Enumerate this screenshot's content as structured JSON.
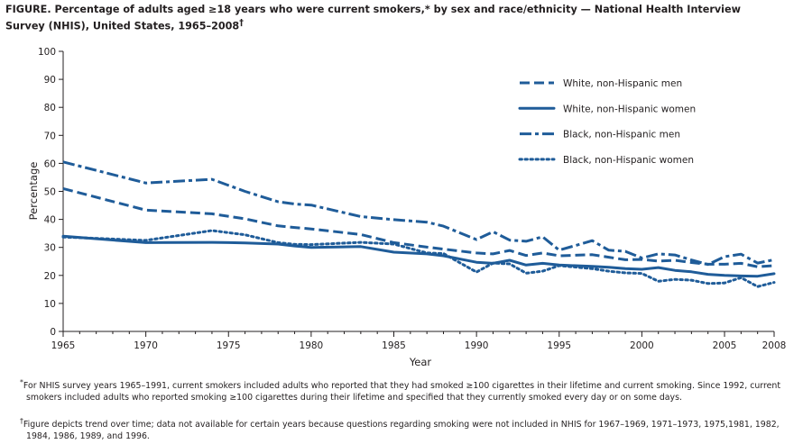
{
  "title": {
    "label": "FIGURE.",
    "text": " Percentage of adults aged ≥18 years who were current smokers,* by sex and race/ethnicity — National Health Interview Survey (NHIS), United States, 1965–2008",
    "mark": "†"
  },
  "chart_data": {
    "type": "line",
    "xlabel": "Year",
    "ylabel": "Percentage",
    "xlim": [
      1965,
      2008
    ],
    "ylim": [
      0,
      100
    ],
    "x_ticks": [
      1965,
      1970,
      1975,
      1980,
      1985,
      1990,
      1995,
      2000,
      2005,
      2008
    ],
    "y_ticks": [
      0,
      10,
      20,
      30,
      40,
      50,
      60,
      70,
      80,
      90,
      100
    ],
    "grid": false,
    "legend_position": "top-right",
    "series": [
      {
        "name": "White, non-Hispanic men",
        "style": "dashed",
        "color": "#1f5c99",
        "points": [
          [
            1965,
            51
          ],
          [
            1970,
            43.3
          ],
          [
            1974,
            42
          ],
          [
            1976,
            40.2
          ],
          [
            1978,
            37.7
          ],
          [
            1979,
            37.1
          ],
          [
            1980,
            36.6
          ],
          [
            1983,
            34.6
          ],
          [
            1985,
            31.7
          ],
          [
            1987,
            30.1
          ],
          [
            1988,
            29.4
          ],
          [
            1990,
            28.0
          ],
          [
            1991,
            27.7
          ],
          [
            1992,
            28.9
          ],
          [
            1993,
            27.1
          ],
          [
            1994,
            28.0
          ],
          [
            1995,
            27.0
          ],
          [
            1997,
            27.4
          ],
          [
            1998,
            26.5
          ],
          [
            1999,
            25.6
          ],
          [
            2000,
            25.7
          ],
          [
            2001,
            25.1
          ],
          [
            2002,
            25.4
          ],
          [
            2003,
            24.6
          ],
          [
            2004,
            24.0
          ],
          [
            2005,
            24.0
          ],
          [
            2006,
            24.3
          ],
          [
            2007,
            23.1
          ],
          [
            2008,
            23.5
          ]
        ]
      },
      {
        "name": "White, non-Hispanic women",
        "style": "solid",
        "color": "#1f5c99",
        "points": [
          [
            1965,
            34
          ],
          [
            1970,
            31.7
          ],
          [
            1974,
            31.8
          ],
          [
            1976,
            31.6
          ],
          [
            1978,
            31.2
          ],
          [
            1979,
            30.5
          ],
          [
            1980,
            30.0
          ],
          [
            1983,
            30.3
          ],
          [
            1985,
            28.3
          ],
          [
            1987,
            27.7
          ],
          [
            1988,
            27.0
          ],
          [
            1990,
            24.7
          ],
          [
            1991,
            24.3
          ],
          [
            1992,
            25.4
          ],
          [
            1993,
            23.7
          ],
          [
            1994,
            24.3
          ],
          [
            1995,
            23.7
          ],
          [
            1997,
            23.2
          ],
          [
            1998,
            22.9
          ],
          [
            1999,
            22.4
          ],
          [
            2000,
            22.2
          ],
          [
            2001,
            22.8
          ],
          [
            2002,
            21.8
          ],
          [
            2003,
            21.3
          ],
          [
            2004,
            20.4
          ],
          [
            2005,
            20.0
          ],
          [
            2006,
            19.8
          ],
          [
            2007,
            19.7
          ],
          [
            2008,
            20.6
          ]
        ]
      },
      {
        "name": "Black, non-Hispanic men",
        "style": "dash-dot",
        "color": "#1f5c99",
        "points": [
          [
            1965,
            60.5
          ],
          [
            1970,
            53
          ],
          [
            1974,
            54.3
          ],
          [
            1976,
            50.0
          ],
          [
            1978,
            46.3
          ],
          [
            1979,
            45.5
          ],
          [
            1980,
            45.1
          ],
          [
            1983,
            41.0
          ],
          [
            1985,
            39.9
          ],
          [
            1987,
            39.0
          ],
          [
            1988,
            37.6
          ],
          [
            1990,
            32.8
          ],
          [
            1991,
            35.6
          ],
          [
            1992,
            32.6
          ],
          [
            1993,
            32.2
          ],
          [
            1994,
            33.8
          ],
          [
            1995,
            29.0
          ],
          [
            1997,
            32.4
          ],
          [
            1998,
            29.0
          ],
          [
            1999,
            28.6
          ],
          [
            2000,
            26.2
          ],
          [
            2001,
            27.7
          ],
          [
            2002,
            27.3
          ],
          [
            2003,
            25.5
          ],
          [
            2004,
            23.9
          ],
          [
            2005,
            26.7
          ],
          [
            2006,
            27.6
          ],
          [
            2007,
            24.4
          ],
          [
            2008,
            25.6
          ]
        ]
      },
      {
        "name": "Black, non-Hispanic women",
        "style": "dotted",
        "color": "#1f5c99",
        "points": [
          [
            1965,
            33.7
          ],
          [
            1970,
            32.5
          ],
          [
            1974,
            36.0
          ],
          [
            1976,
            34.5
          ],
          [
            1978,
            31.7
          ],
          [
            1979,
            31.1
          ],
          [
            1980,
            31.0
          ],
          [
            1983,
            31.8
          ],
          [
            1985,
            31.2
          ],
          [
            1987,
            28.0
          ],
          [
            1988,
            27.8
          ],
          [
            1990,
            21.2
          ],
          [
            1991,
            24.4
          ],
          [
            1992,
            24.1
          ],
          [
            1993,
            20.8
          ],
          [
            1994,
            21.5
          ],
          [
            1995,
            23.5
          ],
          [
            1997,
            22.4
          ],
          [
            1998,
            21.5
          ],
          [
            1999,
            20.9
          ],
          [
            2000,
            20.7
          ],
          [
            2001,
            17.9
          ],
          [
            2002,
            18.6
          ],
          [
            2003,
            18.3
          ],
          [
            2004,
            17.1
          ],
          [
            2005,
            17.3
          ],
          [
            2006,
            19.2
          ],
          [
            2007,
            16.0
          ],
          [
            2008,
            17.5
          ]
        ]
      }
    ]
  },
  "footnotes": [
    {
      "mark": "*",
      "text": "For NHIS survey years 1965–1991, current smokers included adults who reported that they had smoked ≥100 cigarettes in their lifetime and current smoking. Since 1992, current smokers included adults who reported smoking ≥100 cigarettes during their lifetime and specified that they currently smoked every day or on some days."
    },
    {
      "mark": "†",
      "text": "Figure depicts trend over time; data not available for certain years because questions regarding smoking were not included in NHIS for 1967–1969, 1971–1973, 1975,1981, 1982, 1984, 1986, 1989, and 1996."
    }
  ]
}
